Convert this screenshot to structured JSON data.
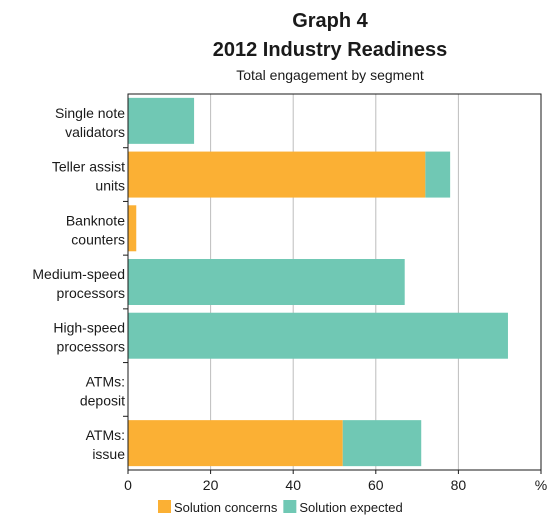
{
  "chart_data": {
    "type": "bar",
    "orientation": "horizontal",
    "stacked": true,
    "titles": [
      "Graph 4",
      "2012 Industry Readiness"
    ],
    "subtitle": "Total engagement by segment",
    "categories": [
      [
        "Single note",
        "validators"
      ],
      [
        "Teller assist",
        "units"
      ],
      [
        "Banknote",
        "counters"
      ],
      [
        "Medium-speed",
        "processors"
      ],
      [
        "High-speed",
        "processors"
      ],
      [
        "ATMs:",
        "deposit"
      ],
      [
        "ATMs:",
        "issue"
      ]
    ],
    "series": [
      {
        "name": "Solution concerns",
        "color": "#FBB034",
        "values": [
          0,
          72,
          2,
          0,
          0,
          0,
          52
        ]
      },
      {
        "name": "Solution expected",
        "color": "#70C8B4",
        "values": [
          16,
          6,
          0,
          67,
          92,
          0,
          19
        ]
      }
    ],
    "xlim": [
      0,
      100
    ],
    "xticks": [
      "0",
      "20",
      "40",
      "60",
      "80",
      "%"
    ],
    "grid": true,
    "legend_position": "bottom"
  }
}
